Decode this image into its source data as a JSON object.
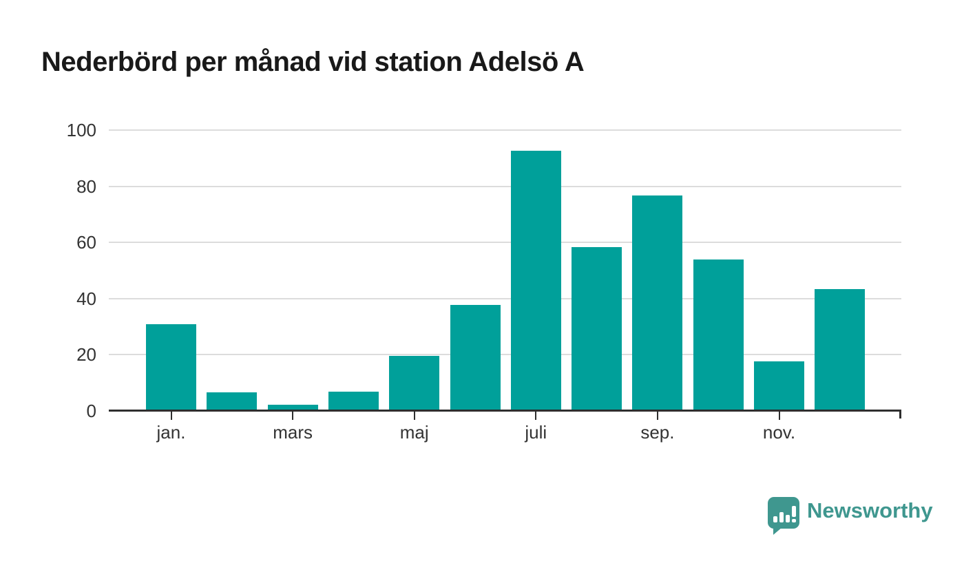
{
  "title": "Nederbörd per månad vid station Adelsö A",
  "branding": {
    "logo_text": "Newsworthy",
    "logo_icon": "newsworthy-speech-bubble-bar-chart-icon"
  },
  "colors": {
    "bar": "#00a09a",
    "logo": "#3f978f",
    "axis_line": "#2e2e2e",
    "gridline": "#dcdcdc",
    "tick_label": "#333333",
    "title_text": "#191919",
    "background": "#ffffff"
  },
  "chart_data": {
    "type": "bar",
    "title": "Nederbörd per månad vid station Adelsö A",
    "values": [
      31.0,
      6.5,
      2.2,
      6.9,
      19.5,
      37.7,
      92.6,
      58.4,
      76.6,
      53.9,
      17.7,
      43.5
    ],
    "n_bars": 12,
    "x_ticks": [
      {
        "bar_index": 0,
        "label": "jan."
      },
      {
        "bar_index": 2,
        "label": "mars"
      },
      {
        "bar_index": 4,
        "label": "maj"
      },
      {
        "bar_index": 6,
        "label": "juli"
      },
      {
        "bar_index": 8,
        "label": "sep."
      },
      {
        "bar_index": 10,
        "label": "nov."
      }
    ],
    "yticks": [
      0,
      20,
      40,
      60,
      80,
      100
    ],
    "ylim": [
      0,
      100
    ],
    "xlabel": "",
    "ylabel": "",
    "grid": "horizontal",
    "legend": "none"
  }
}
